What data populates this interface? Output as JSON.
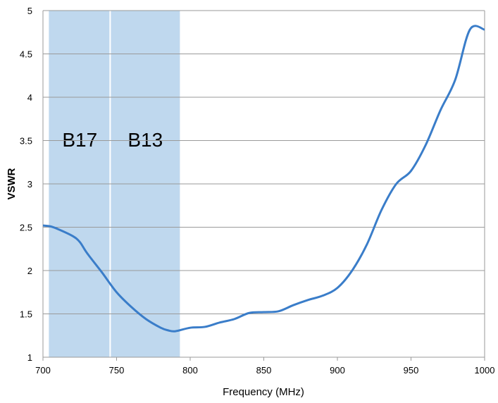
{
  "chart_data": {
    "type": "line",
    "title": "",
    "xlabel": "Frequency (MHz)",
    "ylabel": "VSWR",
    "xlim": [
      700,
      1000
    ],
    "ylim": [
      1,
      5
    ],
    "xticks": [
      "700",
      "750",
      "800",
      "850",
      "900",
      "950",
      "1000"
    ],
    "yticks": [
      "1",
      "1.5",
      "2",
      "2.5",
      "3",
      "3.5",
      "4",
      "4.5",
      "5"
    ],
    "grid": "horizontal",
    "bands": [
      {
        "label": "B17",
        "x_start": 704,
        "x_end": 746
      },
      {
        "label": "B13",
        "x_start": 746,
        "x_end": 793
      }
    ],
    "series": [
      {
        "color": "#3A7DC9",
        "x": [
          700,
          705,
          710,
          720,
          725,
          730,
          740,
          750,
          760,
          770,
          780,
          785,
          790,
          800,
          810,
          820,
          830,
          840,
          850,
          860,
          870,
          880,
          890,
          900,
          910,
          920,
          930,
          940,
          950,
          960,
          970,
          980,
          990,
          1000
        ],
        "y": [
          2.52,
          2.51,
          2.48,
          2.4,
          2.33,
          2.2,
          1.98,
          1.75,
          1.58,
          1.44,
          1.34,
          1.31,
          1.3,
          1.34,
          1.35,
          1.4,
          1.44,
          1.51,
          1.52,
          1.53,
          1.6,
          1.66,
          1.71,
          1.8,
          2.0,
          2.3,
          2.7,
          3.0,
          3.15,
          3.45,
          3.85,
          4.2,
          4.78,
          4.78
        ]
      }
    ],
    "band_color": "#BFD8EE",
    "grid_color": "#9A9A9A"
  }
}
